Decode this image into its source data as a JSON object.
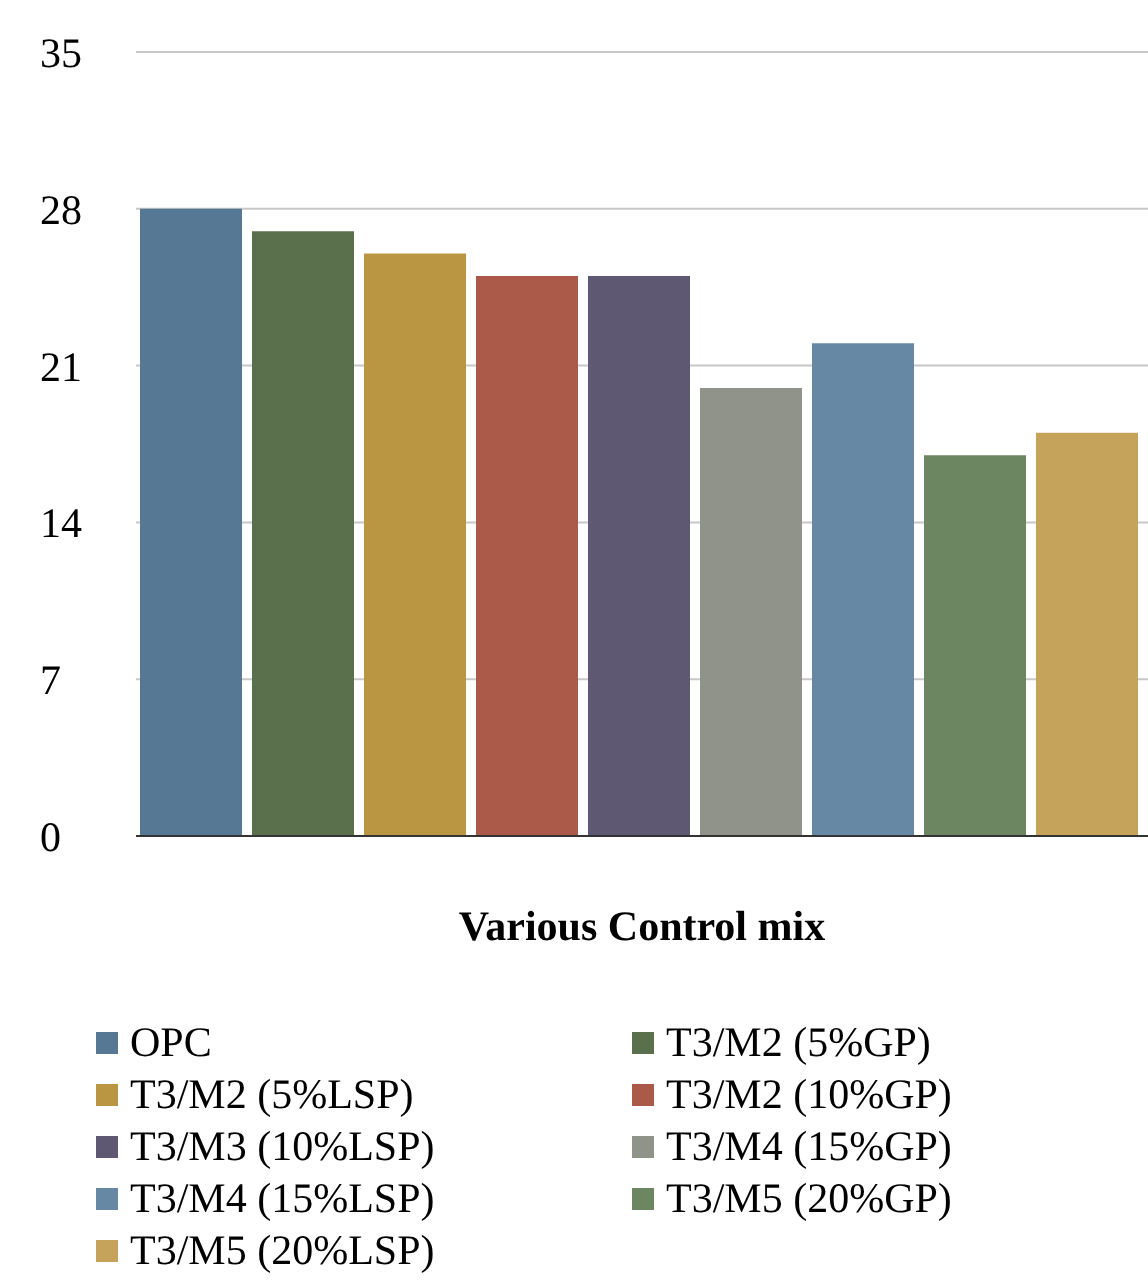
{
  "chart_data": {
    "type": "bar",
    "xlabel": "Various Control mix",
    "categories": [
      null
    ],
    "series": [
      {
        "name": "OPC",
        "color": "#567895",
        "values": [
          28
        ]
      },
      {
        "name": "T3/M2 (5%GP)",
        "color": "#5a704c",
        "values": [
          27
        ]
      },
      {
        "name": "T3/M2 (5%LSP)",
        "color": "#bb9642",
        "values": [
          26
        ]
      },
      {
        "name": "T3/M2 (10%GP)",
        "color": "#ab5a49",
        "values": [
          25
        ]
      },
      {
        "name": "T3/M3 (10%LSP)",
        "color": "#5f5873",
        "values": [
          25
        ]
      },
      {
        "name": "T3/M4 (15%GP)",
        "color": "#8f9389",
        "values": [
          20
        ]
      },
      {
        "name": "T3/M4 (15%LSP)",
        "color": "#6688a4",
        "values": [
          22
        ]
      },
      {
        "name": "T3/M5 (20%GP)",
        "color": "#6b8660",
        "values": [
          17
        ]
      },
      {
        "name": "T3/M5 (20%LSP)",
        "color": "#c6a35b",
        "values": [
          18
        ]
      }
    ],
    "ylim": [
      0,
      35
    ],
    "yticks": [
      0,
      7,
      14,
      21,
      28,
      35
    ],
    "grid": "y",
    "legend": "bottom"
  }
}
